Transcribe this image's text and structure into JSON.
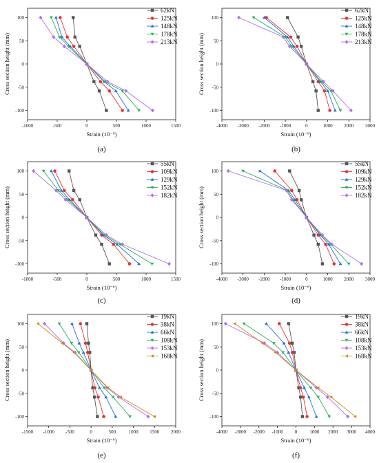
{
  "chart_data": [
    {
      "type": "line",
      "panel_label": "(a)",
      "xlabel": "Strain (10⁻⁶)",
      "ylabel": "Cross section height (mm)",
      "xlim": [
        -1000,
        1500
      ],
      "ylim": [
        -120,
        120
      ],
      "xticks": [
        -1000,
        -500,
        0,
        500,
        1000,
        1500
      ],
      "yticks": [
        -100,
        -50,
        0,
        50,
        100
      ],
      "y": [
        100,
        58,
        38,
        0,
        -38,
        -58,
        -100
      ],
      "legend_position": "top-right",
      "series": [
        {
          "name": "62kN",
          "color": "#555555",
          "marker": "square",
          "x": [
            -230,
            -200,
            -120,
            0,
            120,
            210,
            330
          ]
        },
        {
          "name": "125kN",
          "color": "#e8312f",
          "marker": "circle",
          "x": [
            -450,
            -330,
            -220,
            0,
            230,
            380,
            600
          ]
        },
        {
          "name": "148kN",
          "color": "#1f6fdc",
          "marker": "triangle-up",
          "x": [
            -520,
            -420,
            -280,
            0,
            290,
            490,
            700
          ]
        },
        {
          "name": "178kN",
          "color": "#22b35a",
          "marker": "triangle-down",
          "x": [
            -600,
            -460,
            -310,
            0,
            310,
            600,
            880
          ]
        },
        {
          "name": "213kN",
          "color": "#b06fe8",
          "marker": "diamond",
          "x": [
            -780,
            -560,
            -380,
            0,
            350,
            660,
            1110
          ]
        }
      ]
    },
    {
      "type": "line",
      "panel_label": "(b)",
      "xlabel": "Strain (10⁻⁶)",
      "ylabel": "Cross section height (mm)",
      "xlim": [
        -4000,
        3000
      ],
      "ylim": [
        -120,
        120
      ],
      "xticks": [
        -4000,
        -3000,
        -2000,
        -1000,
        0,
        1000,
        2000,
        3000
      ],
      "yticks": [
        -100,
        -50,
        0,
        50,
        100
      ],
      "y": [
        100,
        58,
        38,
        0,
        -38,
        -58,
        -100
      ],
      "legend_position": "top-right",
      "series": [
        {
          "name": "62kN",
          "color": "#555555",
          "marker": "square",
          "x": [
            -900,
            -400,
            -250,
            0,
            300,
            450,
            550
          ]
        },
        {
          "name": "125kN",
          "color": "#e8312f",
          "marker": "circle",
          "x": [
            -1900,
            -750,
            -450,
            0,
            550,
            850,
            1100
          ]
        },
        {
          "name": "148kN",
          "color": "#1f6fdc",
          "marker": "triangle-up",
          "x": [
            -2000,
            -900,
            -600,
            0,
            650,
            1000,
            1350
          ]
        },
        {
          "name": "178kN",
          "color": "#22b35a",
          "marker": "triangle-down",
          "x": [
            -2500,
            -1000,
            -700,
            0,
            700,
            1150,
            1600
          ]
        },
        {
          "name": "213kN",
          "color": "#b06fe8",
          "marker": "diamond",
          "x": [
            -3200,
            -1100,
            -800,
            0,
            800,
            1250,
            2100
          ]
        }
      ]
    },
    {
      "type": "line",
      "panel_label": "(c)",
      "xlabel": "Strain (10⁻⁶)",
      "ylabel": "Cross section height (mm)",
      "xlim": [
        -1000,
        1500
      ],
      "ylim": [
        -120,
        120
      ],
      "xticks": [
        -1000,
        -500,
        0,
        500,
        1000,
        1500
      ],
      "yticks": [
        -100,
        -50,
        0,
        50,
        100
      ],
      "y": [
        100,
        58,
        38,
        0,
        -38,
        -58,
        -100
      ],
      "legend_position": "top-right",
      "series": [
        {
          "name": "55kN",
          "color": "#555555",
          "marker": "square",
          "x": [
            -300,
            -220,
            -120,
            0,
            150,
            250,
            380
          ]
        },
        {
          "name": "109kN",
          "color": "#e8312f",
          "marker": "circle",
          "x": [
            -540,
            -380,
            -240,
            0,
            250,
            450,
            720
          ]
        },
        {
          "name": "129kN",
          "color": "#1f6fdc",
          "marker": "triangle-up",
          "x": [
            -600,
            -430,
            -290,
            0,
            280,
            510,
            880
          ]
        },
        {
          "name": "152kN",
          "color": "#22b35a",
          "marker": "triangle-down",
          "x": [
            -730,
            -480,
            -320,
            0,
            300,
            560,
            1100
          ]
        },
        {
          "name": "182kN",
          "color": "#b06fe8",
          "marker": "diamond",
          "x": [
            -900,
            -520,
            -360,
            0,
            330,
            600,
            1390
          ]
        }
      ]
    },
    {
      "type": "line",
      "panel_label": "(d)",
      "xlabel": "Strain (10⁻⁶)",
      "ylabel": "Cross section height (mm)",
      "xlim": [
        -4000,
        3000
      ],
      "ylim": [
        -120,
        120
      ],
      "xticks": [
        -4000,
        -3000,
        -2000,
        -1000,
        0,
        1000,
        2000,
        3000
      ],
      "yticks": [
        -100,
        -50,
        0,
        50,
        100
      ],
      "y": [
        100,
        58,
        38,
        0,
        -38,
        -58,
        -100
      ],
      "legend_position": "top-right",
      "series": [
        {
          "name": "55kN",
          "color": "#555555",
          "marker": "square",
          "x": [
            -800,
            -350,
            -250,
            0,
            350,
            550,
            750
          ]
        },
        {
          "name": "109kN",
          "color": "#e8312f",
          "marker": "circle",
          "x": [
            -1500,
            -700,
            -450,
            0,
            550,
            900,
            1300
          ]
        },
        {
          "name": "129kN",
          "color": "#1f6fdc",
          "marker": "triangle-up",
          "x": [
            -2200,
            -850,
            -550,
            0,
            650,
            1050,
            1600
          ]
        },
        {
          "name": "152kN",
          "color": "#22b35a",
          "marker": "triangle-down",
          "x": [
            -3000,
            -900,
            -650,
            0,
            700,
            1150,
            2000
          ]
        },
        {
          "name": "182kN",
          "color": "#b06fe8",
          "marker": "diamond",
          "x": [
            -3700,
            -950,
            -700,
            0,
            750,
            1200,
            2600
          ]
        }
      ]
    },
    {
      "type": "line",
      "panel_label": "(e)",
      "xlabel": "Strain (10⁻⁶)",
      "ylabel": "Cross section height (mm)",
      "xlim": [
        -1500,
        2000
      ],
      "ylim": [
        -120,
        120
      ],
      "xticks": [
        -1500,
        -1000,
        -500,
        0,
        500,
        1000,
        1500,
        2000
      ],
      "yticks": [
        -100,
        -50,
        0,
        50,
        100
      ],
      "y": [
        100,
        58,
        38,
        0,
        -38,
        -58,
        -100
      ],
      "legend_position": "top-right",
      "series": [
        {
          "name": "19kN",
          "color": "#555555",
          "marker": "square",
          "x": [
            -100,
            -60,
            -30,
            0,
            40,
            80,
            150
          ]
        },
        {
          "name": "38kN",
          "color": "#e8312f",
          "marker": "circle",
          "x": [
            -250,
            -130,
            -80,
            0,
            90,
            170,
            300
          ]
        },
        {
          "name": "66kN",
          "color": "#1f6fdc",
          "marker": "triangle-up",
          "x": [
            -450,
            -280,
            -180,
            0,
            200,
            350,
            580
          ]
        },
        {
          "name": "108kN",
          "color": "#22b35a",
          "marker": "triangle-down",
          "x": [
            -750,
            -460,
            -290,
            0,
            310,
            520,
            920
          ]
        },
        {
          "name": "153kN",
          "color": "#b06fe8",
          "marker": "diamond",
          "x": [
            -1100,
            -650,
            -380,
            0,
            380,
            650,
            1350
          ]
        },
        {
          "name": "168kN",
          "color": "#d48a12",
          "marker": "triangle-left",
          "x": [
            -1250,
            -680,
            -400,
            0,
            400,
            700,
            1500
          ]
        }
      ]
    },
    {
      "type": "line",
      "panel_label": "(f)",
      "xlabel": "Strain (10⁻⁶)",
      "ylabel": "Cross section height (mm)",
      "xlim": [
        -4000,
        4000
      ],
      "ylim": [
        -120,
        120
      ],
      "xticks": [
        -4000,
        -3000,
        -2000,
        -1000,
        0,
        1000,
        2000,
        3000,
        4000
      ],
      "yticks": [
        -100,
        -50,
        0,
        50,
        100
      ],
      "y": [
        100,
        58,
        38,
        0,
        -38,
        -58,
        -100
      ],
      "legend_position": "top-right",
      "series": [
        {
          "name": "19kN",
          "color": "#555555",
          "marker": "square",
          "x": [
            -400,
            -200,
            -100,
            0,
            150,
            250,
            350
          ]
        },
        {
          "name": "38kN",
          "color": "#e8312f",
          "marker": "circle",
          "x": [
            -900,
            -350,
            -200,
            0,
            250,
            400,
            600
          ]
        },
        {
          "name": "66kN",
          "color": "#1f6fdc",
          "marker": "triangle-up",
          "x": [
            -1600,
            -650,
            -400,
            0,
            450,
            700,
            1100
          ]
        },
        {
          "name": "108kN",
          "color": "#22b35a",
          "marker": "triangle-down",
          "x": [
            -2800,
            -1200,
            -700,
            0,
            800,
            1200,
            1800
          ]
        },
        {
          "name": "153kN",
          "color": "#b06fe8",
          "marker": "diamond",
          "x": [
            -3800,
            -1700,
            -1000,
            0,
            1100,
            1700,
            2800
          ]
        },
        {
          "name": "168kN",
          "color": "#d48a12",
          "marker": "triangle-left",
          "x": [
            -3300,
            -1800,
            -1100,
            0,
            1200,
            1900,
            3200
          ]
        }
      ]
    }
  ]
}
